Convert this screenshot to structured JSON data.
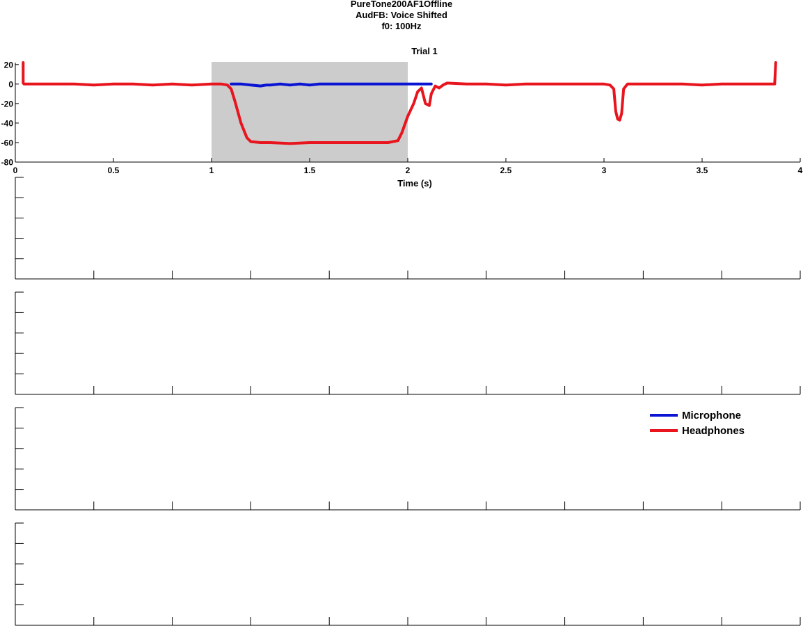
{
  "figure": {
    "title_lines": [
      "PureTone200AF1Offline",
      "AudFB: Voice Shifted",
      "f0: 100Hz"
    ]
  },
  "colors": {
    "microphone": "#0a14d2",
    "headphones": "#e8141e",
    "shade": "#cccccc",
    "axis": "#000000"
  },
  "legend": {
    "items": [
      {
        "label": "Microphone",
        "color": "#0a14d2"
      },
      {
        "label": "Headphones",
        "color": "#e8141e"
      }
    ]
  },
  "chart_data": [
    {
      "type": "line",
      "title": "Trial 1",
      "xlabel": "Time (s)",
      "ylabel": "",
      "xlim": [
        0,
        4
      ],
      "ylim": [
        -80,
        22
      ],
      "xticks": [
        0,
        0.5,
        1,
        1.5,
        2,
        2.5,
        3,
        3.5,
        4
      ],
      "xtick_labels": [
        "0",
        "0.5",
        "1",
        "1.5",
        "2",
        "2.5",
        "3",
        "3.5",
        "4"
      ],
      "yticks": [
        20,
        0,
        -20,
        -40,
        -60,
        -80
      ],
      "ytick_labels": [
        "20",
        "0",
        "-20",
        "-40",
        "-60",
        "-80"
      ],
      "shaded_region": {
        "x": [
          1.0,
          2.0
        ]
      },
      "series": [
        {
          "name": "Microphone",
          "x": [
            1.1,
            1.15,
            1.2,
            1.25,
            1.28,
            1.3,
            1.35,
            1.4,
            1.45,
            1.5,
            1.55,
            1.6,
            1.65,
            1.7,
            1.75,
            1.8,
            1.85,
            1.9,
            1.95,
            2.0,
            2.05,
            2.1,
            2.12
          ],
          "y": [
            0,
            0,
            -1,
            -2,
            -1,
            -1,
            0,
            -1,
            0,
            -1,
            0,
            0,
            0,
            0,
            0,
            0,
            0,
            0,
            0,
            0,
            0,
            0,
            0
          ]
        },
        {
          "name": "Headphones",
          "x": [
            0.04,
            0.04,
            0.045,
            0.1,
            0.2,
            0.3,
            0.4,
            0.5,
            0.6,
            0.7,
            0.8,
            0.9,
            1.0,
            1.05,
            1.08,
            1.1,
            1.12,
            1.15,
            1.18,
            1.2,
            1.25,
            1.3,
            1.4,
            1.5,
            1.6,
            1.7,
            1.8,
            1.9,
            1.95,
            1.97,
            2.0,
            2.03,
            2.05,
            2.07,
            2.09,
            2.11,
            2.12,
            2.14,
            2.16,
            2.18,
            2.2,
            2.3,
            2.4,
            2.5,
            2.6,
            2.7,
            2.8,
            2.9,
            3.0,
            3.03,
            3.05,
            3.06,
            3.07,
            3.08,
            3.09,
            3.1,
            3.12,
            3.2,
            3.3,
            3.4,
            3.5,
            3.6,
            3.7,
            3.8,
            3.85,
            3.87,
            3.875
          ],
          "y": [
            22,
            1,
            0,
            0,
            0,
            0,
            -1,
            0,
            0,
            -1,
            0,
            -1,
            0,
            0,
            -1,
            -5,
            -18,
            -40,
            -55,
            -59,
            -60,
            -60,
            -61,
            -60,
            -60,
            -60,
            -60,
            -60,
            -58,
            -50,
            -33,
            -20,
            -8,
            -4,
            -20,
            -22,
            -10,
            -2,
            -4,
            -1,
            1,
            0,
            0,
            -1,
            0,
            0,
            0,
            0,
            0,
            -1,
            -5,
            -28,
            -36,
            -37,
            -30,
            -5,
            0,
            0,
            0,
            0,
            -1,
            0,
            0,
            0,
            0,
            0,
            22
          ]
        }
      ]
    },
    {
      "type": "line",
      "xlim": [
        0,
        4
      ],
      "ylim": [
        0,
        5
      ],
      "series": []
    },
    {
      "type": "line",
      "xlim": [
        0,
        4
      ],
      "ylim": [
        0,
        5
      ],
      "series": []
    },
    {
      "type": "line",
      "xlim": [
        0,
        4
      ],
      "ylim": [
        0,
        5
      ],
      "series": []
    },
    {
      "type": "line",
      "xlim": [
        0,
        4
      ],
      "ylim": [
        0,
        5
      ],
      "series": []
    }
  ]
}
